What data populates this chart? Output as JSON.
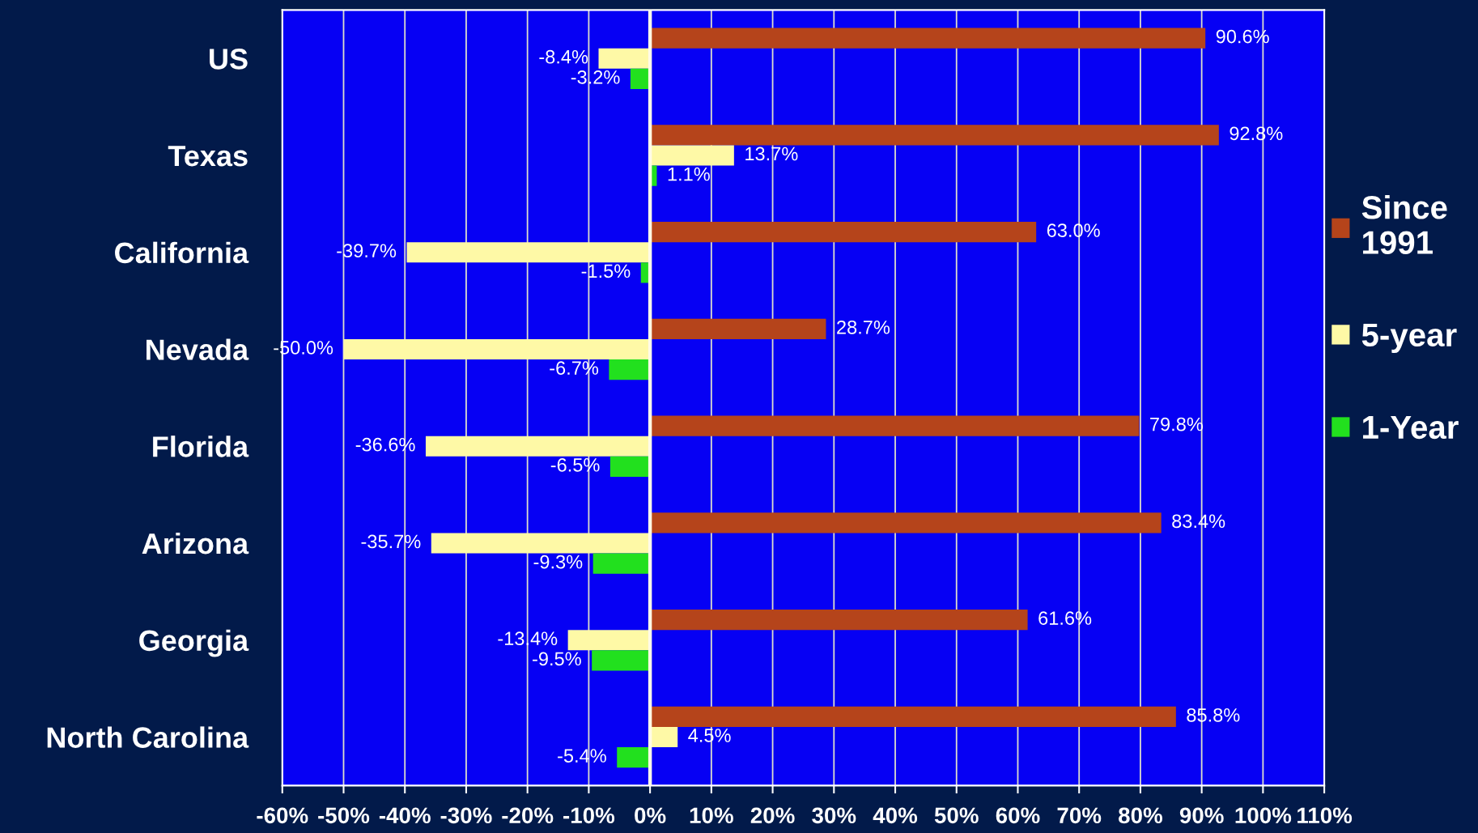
{
  "chart_data": {
    "type": "bar",
    "orientation": "horizontal",
    "categories": [
      "US",
      "Texas",
      "California",
      "Nevada",
      "Florida",
      "Arizona",
      "Georgia",
      "North Carolina"
    ],
    "series": [
      {
        "name": "Since\n1991",
        "color": "#b5441b",
        "values": [
          90.6,
          92.8,
          63.0,
          28.7,
          79.8,
          83.4,
          61.6,
          85.8
        ],
        "value_labels": [
          "90.6%",
          "92.8%",
          "63.0%",
          "28.7%",
          "79.8%",
          "83.4%",
          "61.6%",
          "85.8%"
        ]
      },
      {
        "name": "5-year",
        "color": "#fef9a6",
        "values": [
          -8.4,
          13.7,
          -39.7,
          -50.0,
          -36.6,
          -35.7,
          -13.4,
          4.5
        ],
        "value_labels": [
          "-8.4%",
          "13.7%",
          "-39.7%",
          "-50.0%",
          "-36.6%",
          "-35.7%",
          "-13.4%",
          "4.5%"
        ]
      },
      {
        "name": "1-Year",
        "color": "#22e01e",
        "values": [
          -3.2,
          1.1,
          -1.5,
          -6.7,
          -6.5,
          -9.3,
          -9.5,
          -5.4
        ],
        "value_labels": [
          "-3.2%",
          "1.1%",
          "-1.5%",
          "-6.7%",
          "-6.5%",
          "-9.3%",
          "-9.5%",
          "-5.4%"
        ]
      }
    ],
    "xlim": [
      -60,
      110
    ],
    "xticks": [
      {
        "value": -60,
        "label": "-60%"
      },
      {
        "value": -50,
        "label": "-50%"
      },
      {
        "value": -40,
        "label": "-40%"
      },
      {
        "value": -30,
        "label": "-30%"
      },
      {
        "value": -20,
        "label": "-20%"
      },
      {
        "value": -10,
        "label": "-10%"
      },
      {
        "value": 0,
        "label": "0%"
      },
      {
        "value": 10,
        "label": "10%"
      },
      {
        "value": 20,
        "label": "20%"
      },
      {
        "value": 30,
        "label": "30%"
      },
      {
        "value": 40,
        "label": "40%"
      },
      {
        "value": 50,
        "label": "50%"
      },
      {
        "value": 60,
        "label": "60%"
      },
      {
        "value": 70,
        "label": "70%"
      },
      {
        "value": 80,
        "label": "80%"
      },
      {
        "value": 90,
        "label": "90%"
      },
      {
        "value": 100,
        "label": "100%"
      },
      {
        "value": 110,
        "label": "110%"
      }
    ],
    "grid": "x",
    "legend": "right",
    "ref_lines": [
      {
        "axis": "x",
        "value": 0,
        "color": "#fffbe8"
      }
    ]
  }
}
